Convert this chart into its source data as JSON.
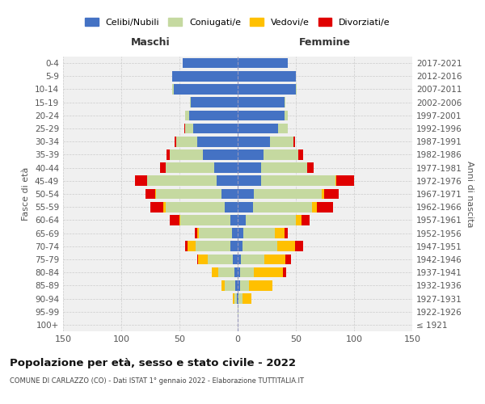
{
  "age_groups": [
    "100+",
    "95-99",
    "90-94",
    "85-89",
    "80-84",
    "75-79",
    "70-74",
    "65-69",
    "60-64",
    "55-59",
    "50-54",
    "45-49",
    "40-44",
    "35-39",
    "30-34",
    "25-29",
    "20-24",
    "15-19",
    "10-14",
    "5-9",
    "0-4"
  ],
  "birth_years": [
    "≤ 1921",
    "1922-1926",
    "1927-1931",
    "1932-1936",
    "1937-1941",
    "1942-1946",
    "1947-1951",
    "1952-1956",
    "1957-1961",
    "1962-1966",
    "1967-1971",
    "1972-1976",
    "1977-1981",
    "1982-1986",
    "1987-1991",
    "1992-1996",
    "1997-2001",
    "2002-2006",
    "2007-2011",
    "2012-2016",
    "2017-2021"
  ],
  "males": {
    "celibi": [
      0,
      0,
      1,
      2,
      3,
      4,
      6,
      5,
      6,
      11,
      14,
      18,
      20,
      30,
      35,
      38,
      42,
      40,
      55,
      56,
      47
    ],
    "coniugati": [
      0,
      0,
      2,
      9,
      14,
      22,
      30,
      28,
      43,
      51,
      56,
      60,
      42,
      28,
      18,
      7,
      3,
      1,
      1,
      0,
      0
    ],
    "vedovi": [
      0,
      0,
      1,
      3,
      5,
      8,
      7,
      2,
      1,
      2,
      1,
      0,
      0,
      0,
      0,
      0,
      0,
      0,
      0,
      0,
      0
    ],
    "divorziati": [
      0,
      0,
      0,
      0,
      0,
      1,
      2,
      2,
      8,
      11,
      8,
      10,
      5,
      3,
      1,
      1,
      0,
      0,
      0,
      0,
      0
    ]
  },
  "females": {
    "nubili": [
      0,
      0,
      1,
      2,
      2,
      3,
      4,
      5,
      7,
      13,
      14,
      20,
      20,
      22,
      28,
      35,
      40,
      40,
      50,
      50,
      43
    ],
    "coniugate": [
      0,
      1,
      3,
      8,
      12,
      20,
      30,
      27,
      43,
      51,
      58,
      64,
      40,
      30,
      20,
      8,
      3,
      1,
      1,
      0,
      0
    ],
    "vedove": [
      0,
      0,
      8,
      20,
      25,
      18,
      15,
      8,
      5,
      4,
      2,
      1,
      0,
      0,
      0,
      0,
      0,
      0,
      0,
      0,
      0
    ],
    "divorziate": [
      0,
      0,
      0,
      0,
      3,
      5,
      7,
      3,
      7,
      14,
      13,
      15,
      5,
      4,
      1,
      0,
      0,
      0,
      0,
      0,
      0
    ]
  },
  "colors": {
    "celibi": "#4472c4",
    "coniugati": "#c5d9a0",
    "vedovi": "#ffc000",
    "divorziati": "#e00000"
  },
  "xlim": 150,
  "title": "Popolazione per età, sesso e stato civile - 2022",
  "subtitle": "COMUNE DI CARLAZZO (CO) - Dati ISTAT 1° gennaio 2022 - Elaborazione TUTTITALIA.IT",
  "ylabel": "Fasce di età",
  "ylabel2": "Anni di nascita",
  "bg_color": "#f0f0f0",
  "legend_labels": [
    "Celibi/Nubili",
    "Coniugati/e",
    "Vedovi/e",
    "Divorziati/e"
  ]
}
